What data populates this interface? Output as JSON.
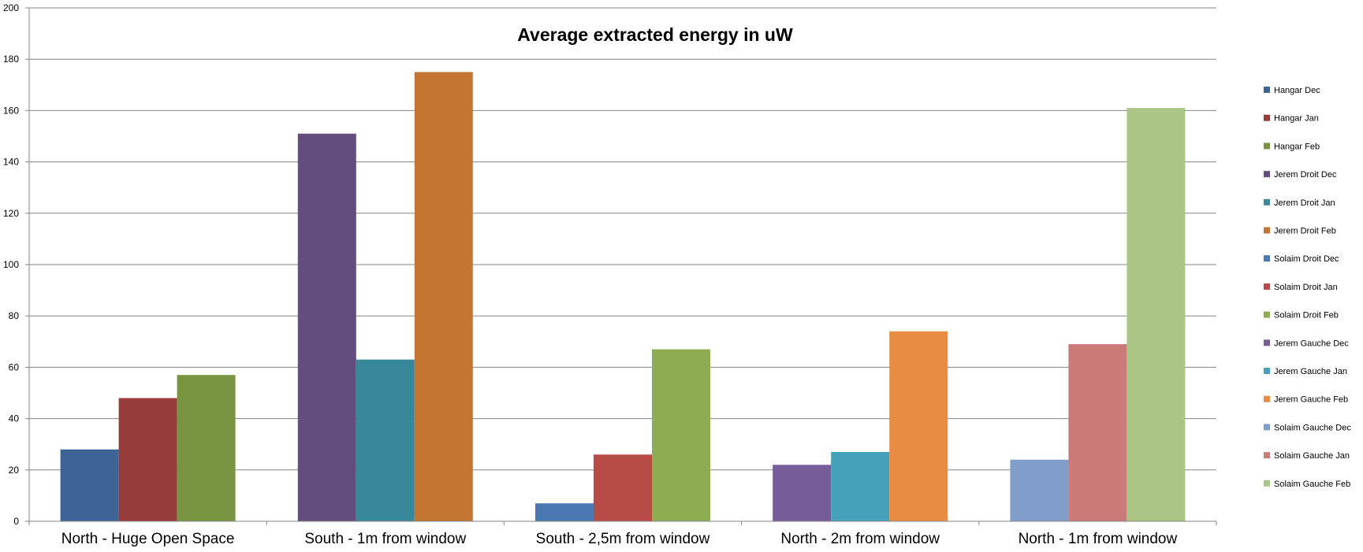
{
  "chart_data": {
    "type": "bar",
    "title": "Average extracted energy in uW",
    "xlabel": "",
    "ylabel": "",
    "ylim": [
      0,
      200
    ],
    "yticks": [
      0,
      20,
      40,
      60,
      80,
      100,
      120,
      140,
      160,
      180,
      200
    ],
    "grid": true,
    "legend_position": "right",
    "categories": [
      "North - Huge Open Space",
      "South - 1m from window",
      "South - 2,5m from window",
      "North - 2m from window",
      "North - 1m from window"
    ],
    "series": [
      {
        "name": "Hangar Dec",
        "color": "#3e6497",
        "values": [
          28,
          null,
          null,
          null,
          null
        ]
      },
      {
        "name": "Hangar Jan",
        "color": "#983c3b",
        "values": [
          48,
          null,
          null,
          null,
          null
        ]
      },
      {
        "name": "Hangar Feb",
        "color": "#789441",
        "values": [
          57,
          null,
          null,
          null,
          null
        ]
      },
      {
        "name": "Jerem Droit Dec",
        "color": "#624d7d",
        "values": [
          null,
          151,
          null,
          null,
          null
        ]
      },
      {
        "name": "Jerem Droit Jan",
        "color": "#38879a",
        "values": [
          null,
          63,
          null,
          null,
          null
        ]
      },
      {
        "name": "Jerem Droit Feb",
        "color": "#c57532",
        "values": [
          null,
          175,
          null,
          null,
          null
        ]
      },
      {
        "name": "Solaim Droit Dec",
        "color": "#4a78b2",
        "values": [
          null,
          null,
          7,
          null,
          null
        ]
      },
      {
        "name": "Solaim Droit Jan",
        "color": "#b64b48",
        "values": [
          null,
          null,
          26,
          null,
          null
        ]
      },
      {
        "name": "Solaim Droit Feb",
        "color": "#8ead52",
        "values": [
          null,
          null,
          67,
          null,
          null
        ]
      },
      {
        "name": "Jerem Gauche Dec",
        "color": "#765c99",
        "values": [
          null,
          null,
          null,
          22,
          null
        ]
      },
      {
        "name": "Jerem Gauche Jan",
        "color": "#45a1b9",
        "values": [
          null,
          null,
          null,
          27,
          null
        ]
      },
      {
        "name": "Jerem Gauche Feb",
        "color": "#e88c43",
        "values": [
          null,
          null,
          null,
          74,
          null
        ]
      },
      {
        "name": "Solaim Gauche Dec",
        "color": "#809ec9",
        "values": [
          null,
          null,
          null,
          null,
          24
        ]
      },
      {
        "name": "Solaim Gauche Jan",
        "color": "#cc7a78",
        "values": [
          null,
          null,
          null,
          null,
          69
        ]
      },
      {
        "name": "Solaim Gauche Feb",
        "color": "#abc584",
        "values": [
          null,
          null,
          null,
          null,
          161
        ]
      }
    ]
  }
}
